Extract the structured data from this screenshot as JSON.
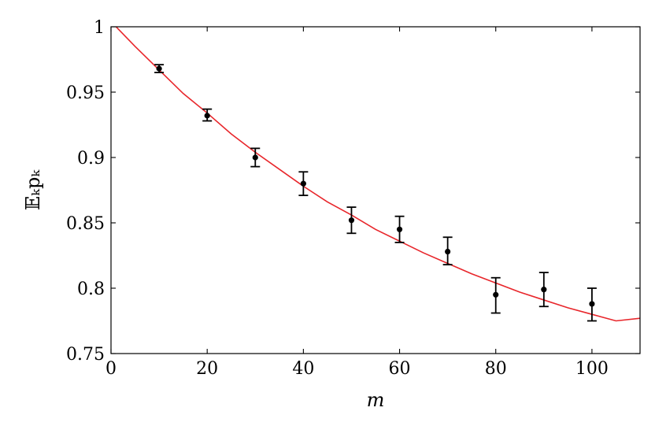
{
  "chart_data": {
    "type": "scatter",
    "xlabel": "m",
    "ylabel": "𝔼ₖpₖ",
    "xlim": [
      0,
      110
    ],
    "ylim": [
      0.75,
      1.0
    ],
    "x_ticks": [
      0,
      20,
      40,
      60,
      80,
      100
    ],
    "y_ticks": [
      0.75,
      0.8,
      0.85,
      0.9,
      0.95,
      1.0
    ],
    "x_tick_labels": [
      "0",
      "20",
      "40",
      "60",
      "80",
      "100"
    ],
    "y_tick_labels": [
      "0.75",
      "0.8",
      "0.85",
      "0.9",
      "0.95",
      "1"
    ],
    "grid": false,
    "series": [
      {
        "type": "scatter",
        "color": "#000000",
        "x": [
          10,
          20,
          30,
          40,
          50,
          60,
          70,
          80,
          90,
          100
        ],
        "y": [
          0.968,
          0.932,
          0.9,
          0.88,
          0.852,
          0.845,
          0.828,
          0.795,
          0.799,
          0.788
        ],
        "error_low": [
          0.965,
          0.928,
          0.893,
          0.871,
          0.842,
          0.835,
          0.818,
          0.781,
          0.786,
          0.775
        ],
        "error_high": [
          0.971,
          0.937,
          0.907,
          0.889,
          0.862,
          0.855,
          0.839,
          0.808,
          0.812,
          0.8
        ]
      },
      {
        "type": "line",
        "color": "#e8262b",
        "x": [
          0,
          5,
          10,
          15,
          20,
          25,
          30,
          35,
          40,
          45,
          50,
          55,
          60,
          65,
          70,
          75,
          80,
          85,
          90,
          95,
          100,
          105,
          110
        ],
        "y": [
          1.004,
          0.985,
          0.967,
          0.949,
          0.934,
          0.918,
          0.904,
          0.891,
          0.878,
          0.866,
          0.856,
          0.845,
          0.836,
          0.827,
          0.819,
          0.811,
          0.804,
          0.797,
          0.791,
          0.785,
          0.78,
          0.775,
          0.777
        ]
      }
    ]
  }
}
